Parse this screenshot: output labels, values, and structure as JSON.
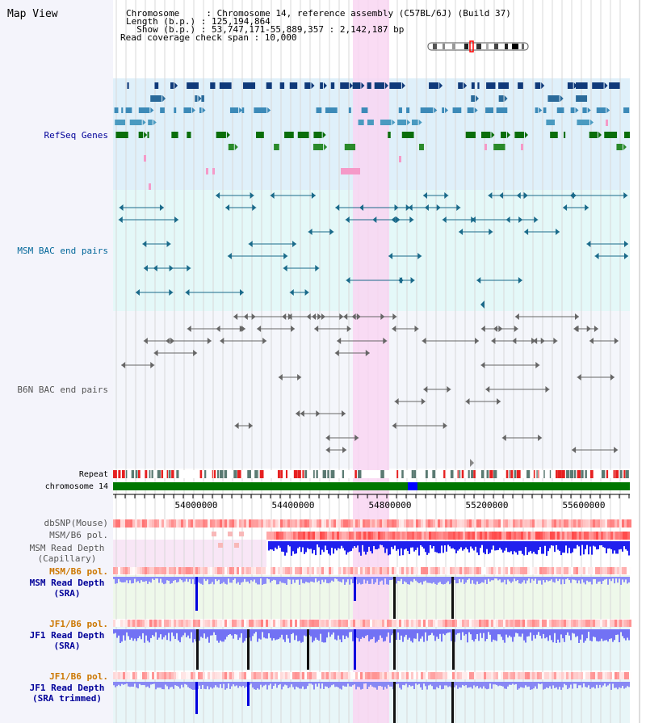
{
  "title": "Map View",
  "header": {
    "lines": [
      "Chromosome     : Chromosome 14, reference assembly (C57BL/6J) (Build 37)",
      "Length (b.p.) : 125,194,864",
      "  Show (b.p.) : 53,747,171-55,889,357 : 2,142,187 bp",
      "Read coverage check span : 10,000"
    ]
  },
  "axis": {
    "ticks": [
      "54000000",
      "54400000",
      "54800000",
      "55200000",
      "55600000"
    ]
  },
  "tracks": {
    "refseq": "RefSeq Genes",
    "msm_bac": "MSM BAC end pairs",
    "b6n_bac": "B6N BAC end pairs",
    "repeat": "Repeat",
    "chromosome": "chromosome 14",
    "dbsnp": "dbSNP(Mouse)",
    "msm_pol1": "MSM/B6 pol.",
    "msm_depth_cap": [
      "MSM Read Depth",
      "(Capillary)"
    ],
    "msm_pol2": "MSM/B6 pol.",
    "msm_depth_sra": [
      "MSM Read Depth",
      "(SRA)"
    ],
    "jf1_pol1": "JF1/B6 pol.",
    "jf1_depth_sra": [
      "JF1 Read Depth",
      "(SRA)"
    ],
    "jf1_pol2": "JF1/B6 pol.",
    "jf1_depth_trim": [
      "JF1 Read Depth",
      "(SRA trimmed)"
    ]
  },
  "colors": {
    "refseq_label": "#000099",
    "msm_label": "#006699",
    "b6n_label": "#555555",
    "pol_label": "#cc7700",
    "depth_label": "#000099",
    "highlight": "#f9d6f2",
    "chromosome_bar": "#007700"
  }
}
